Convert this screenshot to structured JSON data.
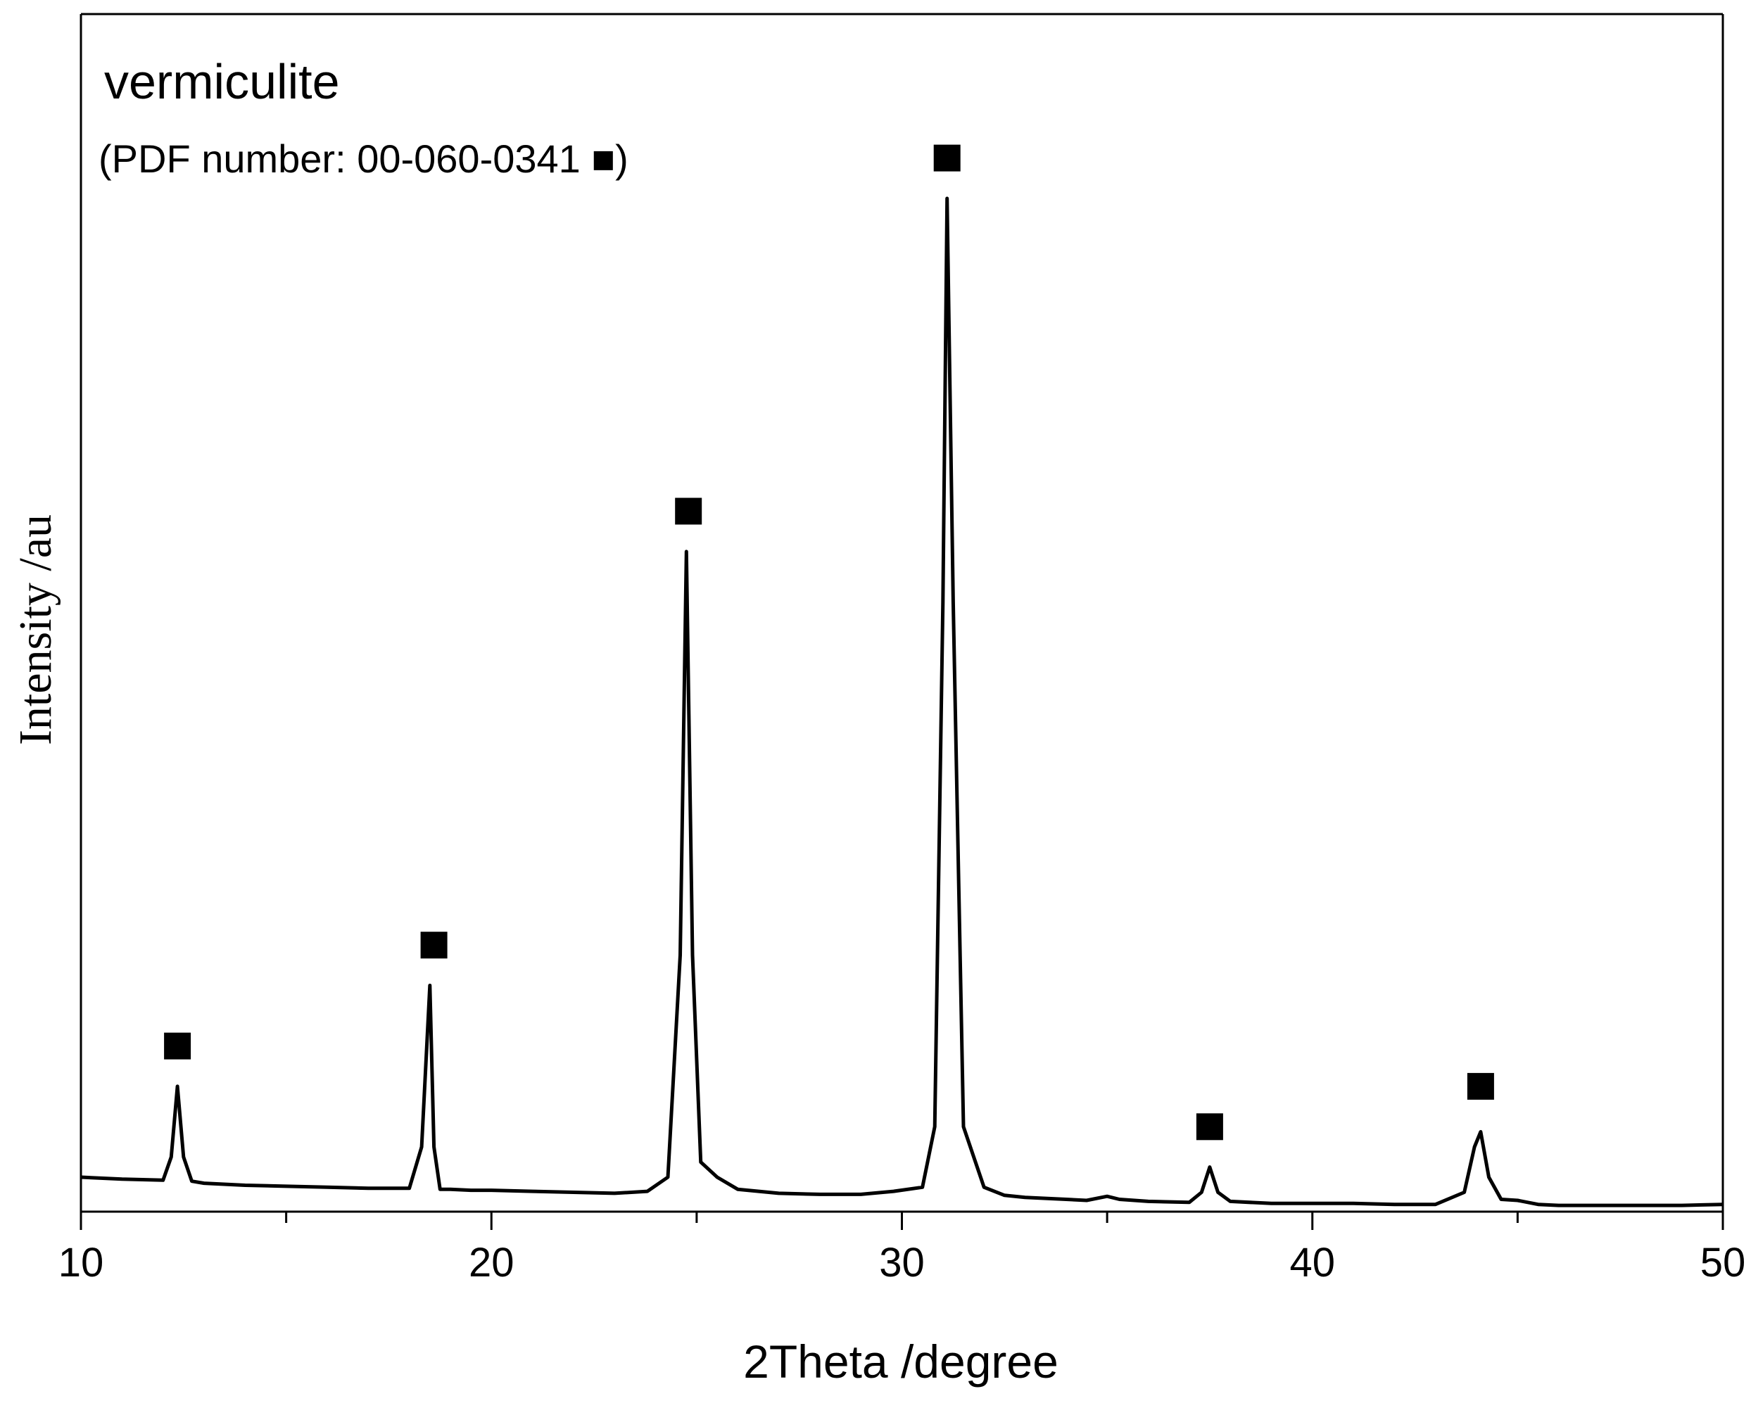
{
  "chart_data": {
    "type": "line",
    "title": "vermiculite",
    "annotation": "(PDF number: 00-060-0341 ■)",
    "xlabel": "2Theta /degree",
    "ylabel": "Intensity /au",
    "xlim": [
      10,
      50
    ],
    "ylim": [
      0,
      100
    ],
    "x_ticks": [
      "10",
      "20",
      "30",
      "40",
      "50"
    ],
    "y_ticks_shown": false,
    "grid": false,
    "legend": "none",
    "line_color": "#000000",
    "marker_symbol": "■",
    "series": [
      {
        "x": [
          10,
          11,
          12,
          12.2,
          12.35,
          12.5,
          12.7,
          13,
          14,
          15,
          16,
          17,
          18,
          18.3,
          18.5,
          18.6,
          18.75,
          19,
          19.5,
          20,
          21,
          22,
          23,
          23.8,
          24.3,
          24.6,
          24.75,
          24.9,
          25.1,
          25.5,
          26,
          27,
          28,
          29,
          29.8,
          30.5,
          30.8,
          31.0,
          31.1,
          31.25,
          31.5,
          32,
          32.5,
          33,
          33.5,
          34,
          34.5,
          35,
          35.3,
          36,
          37,
          37.3,
          37.5,
          37.7,
          38,
          39,
          40,
          41,
          42,
          43,
          43.7,
          43.95,
          44.1,
          44.3,
          44.6,
          45,
          45.5,
          46,
          47,
          48,
          49,
          50
        ],
        "y": [
          3.0,
          2.8,
          2.7,
          5.0,
          12.0,
          5.0,
          2.6,
          2.4,
          2.2,
          2.1,
          2.0,
          1.9,
          1.9,
          6.0,
          22.0,
          6.0,
          1.8,
          1.8,
          1.7,
          1.7,
          1.6,
          1.5,
          1.4,
          1.6,
          3.0,
          25.0,
          65.0,
          25.0,
          4.5,
          3.0,
          1.8,
          1.4,
          1.3,
          1.3,
          1.6,
          2.0,
          8.0,
          60.0,
          100.0,
          60.0,
          8.0,
          2.0,
          1.2,
          1.0,
          0.9,
          0.8,
          0.7,
          1.1,
          0.8,
          0.6,
          0.5,
          1.5,
          4.0,
          1.5,
          0.6,
          0.4,
          0.4,
          0.4,
          0.3,
          0.3,
          1.5,
          6.0,
          7.5,
          3.0,
          0.8,
          0.7,
          0.3,
          0.2,
          0.2,
          0.2,
          0.2,
          0.3
        ]
      }
    ],
    "peak_markers": [
      {
        "x": 12.35,
        "y": 16
      },
      {
        "x": 18.6,
        "y": 26
      },
      {
        "x": 24.8,
        "y": 69
      },
      {
        "x": 31.1,
        "y": 104
      },
      {
        "x": 37.5,
        "y": 8
      },
      {
        "x": 44.1,
        "y": 12
      }
    ]
  }
}
